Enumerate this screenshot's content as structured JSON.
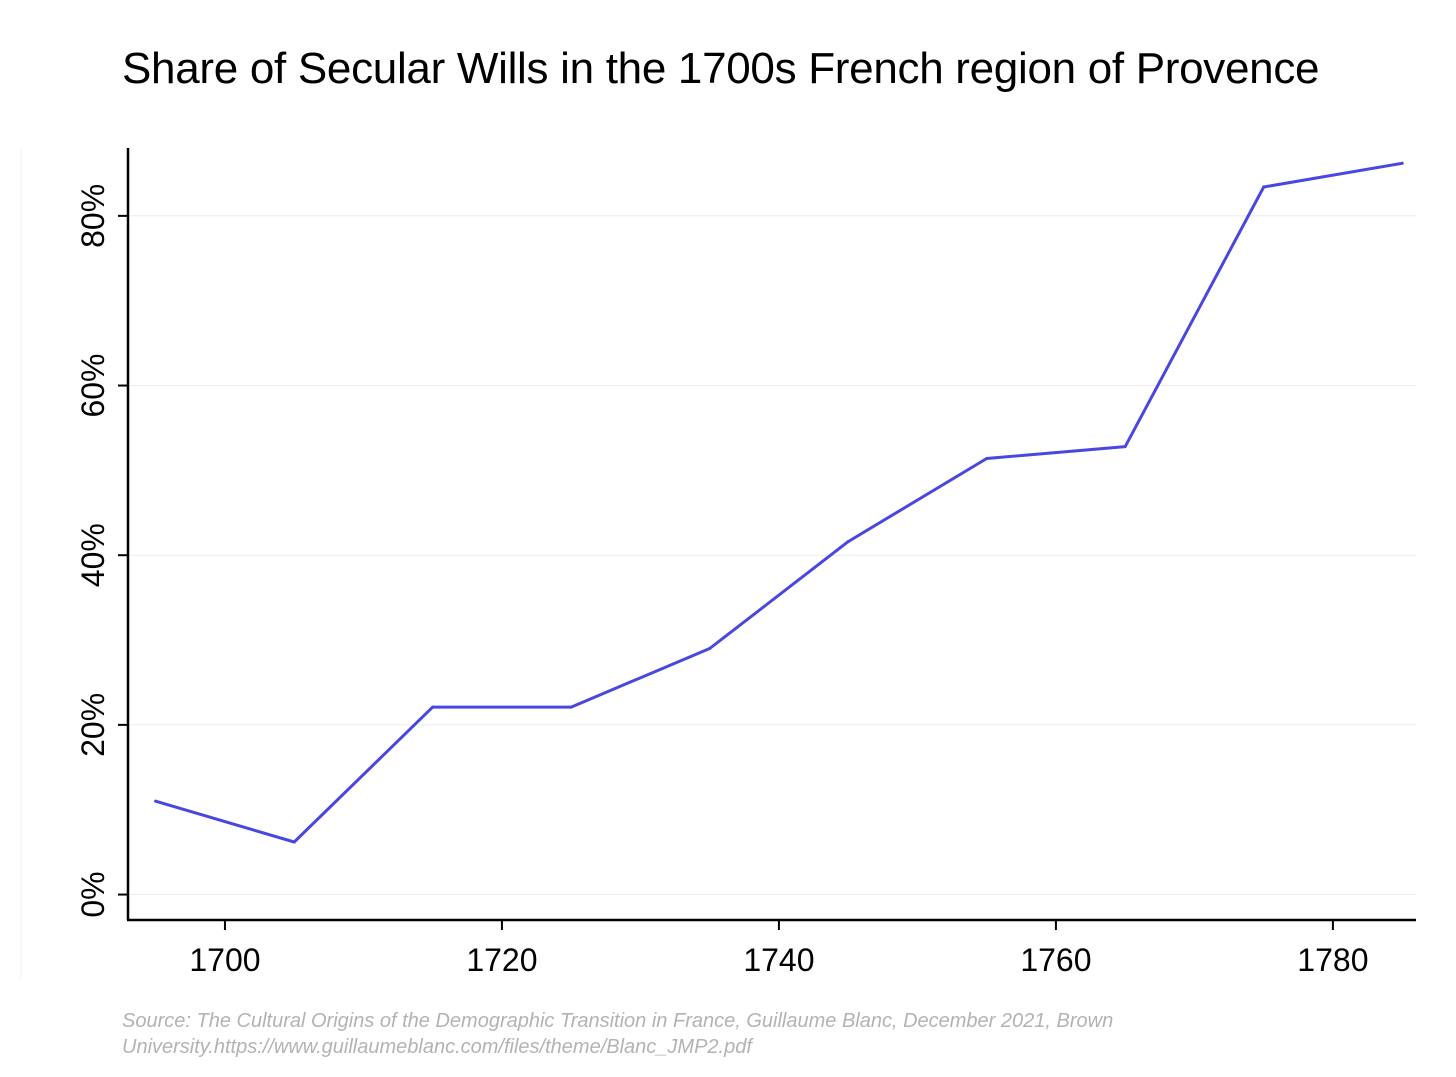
{
  "chart_data": {
    "type": "line",
    "title": "Share of Secular Wills in the 1700s French region of Provence",
    "xlabel": "",
    "ylabel": "",
    "xlim": [
      1693,
      1786
    ],
    "ylim": [
      -3,
      88
    ],
    "x_ticks": [
      1700,
      1720,
      1740,
      1760,
      1780
    ],
    "y_ticks": [
      0,
      20,
      40,
      60,
      80
    ],
    "y_tick_suffix": "%",
    "grid": true,
    "legend": "none",
    "series": [
      {
        "color": "#4a47e0",
        "points": [
          {
            "x": 1695,
            "y": 11.0
          },
          {
            "x": 1705,
            "y": 6.2
          },
          {
            "x": 1715,
            "y": 22.1
          },
          {
            "x": 1725,
            "y": 22.1
          },
          {
            "x": 1735,
            "y": 29.0
          },
          {
            "x": 1745,
            "y": 41.6
          },
          {
            "x": 1755,
            "y": 51.4
          },
          {
            "x": 1765,
            "y": 52.8
          },
          {
            "x": 1775,
            "y": 83.4
          },
          {
            "x": 1785,
            "y": 86.2
          }
        ]
      }
    ]
  },
  "source_text": "Source: The Cultural Origins of the Demographic Transition in France, Guillaume Blanc, December 2021, Brown University.https://www.guillaumeblanc.com/files/theme/Blanc_JMP2.pdf"
}
